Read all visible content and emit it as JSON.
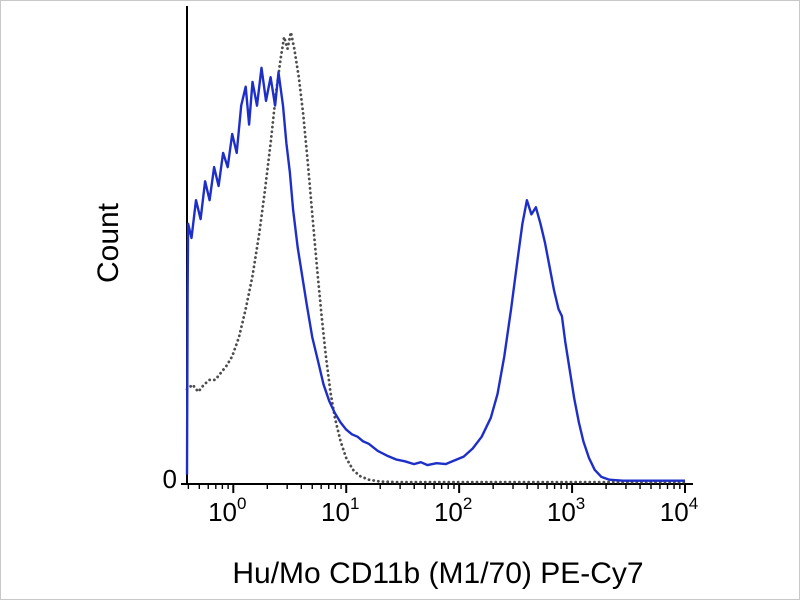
{
  "figure": {
    "background": "#ffffff",
    "border_color": "#c9c9c9"
  },
  "chart_data": {
    "type": "line",
    "subtype": "flow-cytometry-histogram",
    "title": "",
    "xlabel": "Hu/Mo CD11b (M1/70) PE-Cy7",
    "ylabel": "Count",
    "x_scale": "log10",
    "x_range_log": [
      -0.41,
      4
    ],
    "y_range": [
      0,
      1
    ],
    "grid": false,
    "legend": "none",
    "axis_color": "#000000",
    "y_tick_labels": [
      "0"
    ],
    "x_major_ticks": [
      {
        "base": "10",
        "exp": "0",
        "log": 0
      },
      {
        "base": "10",
        "exp": "1",
        "log": 1
      },
      {
        "base": "10",
        "exp": "2",
        "log": 2
      },
      {
        "base": "10",
        "exp": "3",
        "log": 3
      },
      {
        "base": "10",
        "exp": "4",
        "log": 4
      }
    ],
    "series": [
      {
        "name": "dotted-black-curve",
        "style": "dotted",
        "color": "#4d4d4d",
        "points": [
          [
            -0.41,
            0.2
          ],
          [
            -0.36,
            0.21
          ],
          [
            -0.31,
            0.195
          ],
          [
            -0.26,
            0.21
          ],
          [
            -0.21,
            0.22
          ],
          [
            -0.16,
            0.22
          ],
          [
            -0.11,
            0.235
          ],
          [
            -0.06,
            0.25
          ],
          [
            -0.01,
            0.27
          ],
          [
            0.05,
            0.31
          ],
          [
            0.11,
            0.37
          ],
          [
            0.17,
            0.44
          ],
          [
            0.23,
            0.53
          ],
          [
            0.28,
            0.62
          ],
          [
            0.33,
            0.72
          ],
          [
            0.38,
            0.83
          ],
          [
            0.42,
            0.9
          ],
          [
            0.45,
            0.945
          ],
          [
            0.48,
            0.92
          ],
          [
            0.51,
            0.955
          ],
          [
            0.54,
            0.92
          ],
          [
            0.58,
            0.86
          ],
          [
            0.62,
            0.78
          ],
          [
            0.66,
            0.68
          ],
          [
            0.7,
            0.57
          ],
          [
            0.74,
            0.46
          ],
          [
            0.78,
            0.36
          ],
          [
            0.82,
            0.27
          ],
          [
            0.86,
            0.195
          ],
          [
            0.9,
            0.14
          ],
          [
            0.95,
            0.09
          ],
          [
            1.0,
            0.055
          ],
          [
            1.06,
            0.03
          ],
          [
            1.12,
            0.017
          ],
          [
            1.2,
            0.009
          ],
          [
            1.3,
            0.005
          ],
          [
            1.45,
            0.004
          ],
          [
            1.7,
            0.004
          ],
          [
            2.0,
            0.004
          ],
          [
            2.4,
            0.004
          ],
          [
            2.8,
            0.004
          ],
          [
            3.2,
            0.004
          ],
          [
            3.6,
            0.004
          ],
          [
            4.0,
            0.004
          ]
        ]
      },
      {
        "name": "solid-blue-curve",
        "style": "solid",
        "color": "#1e2fc8",
        "points": [
          [
            -0.41,
            0.02
          ],
          [
            -0.405,
            0.4
          ],
          [
            -0.4,
            0.55
          ],
          [
            -0.37,
            0.52
          ],
          [
            -0.33,
            0.6
          ],
          [
            -0.29,
            0.56
          ],
          [
            -0.25,
            0.64
          ],
          [
            -0.21,
            0.6
          ],
          [
            -0.17,
            0.67
          ],
          [
            -0.13,
            0.63
          ],
          [
            -0.09,
            0.7
          ],
          [
            -0.05,
            0.67
          ],
          [
            -0.01,
            0.74
          ],
          [
            0.03,
            0.7
          ],
          [
            0.07,
            0.8
          ],
          [
            0.11,
            0.84
          ],
          [
            0.14,
            0.76
          ],
          [
            0.17,
            0.85
          ],
          [
            0.21,
            0.8
          ],
          [
            0.25,
            0.88
          ],
          [
            0.29,
            0.81
          ],
          [
            0.33,
            0.86
          ],
          [
            0.37,
            0.8
          ],
          [
            0.4,
            0.87
          ],
          [
            0.44,
            0.8
          ],
          [
            0.47,
            0.72
          ],
          [
            0.5,
            0.66
          ],
          [
            0.53,
            0.58
          ],
          [
            0.57,
            0.5
          ],
          [
            0.61,
            0.44
          ],
          [
            0.65,
            0.38
          ],
          [
            0.7,
            0.31
          ],
          [
            0.75,
            0.26
          ],
          [
            0.8,
            0.21
          ],
          [
            0.85,
            0.175
          ],
          [
            0.9,
            0.15
          ],
          [
            0.95,
            0.13
          ],
          [
            1.0,
            0.115
          ],
          [
            1.05,
            0.105
          ],
          [
            1.1,
            0.1
          ],
          [
            1.15,
            0.09
          ],
          [
            1.2,
            0.085
          ],
          [
            1.28,
            0.07
          ],
          [
            1.36,
            0.06
          ],
          [
            1.44,
            0.052
          ],
          [
            1.52,
            0.048
          ],
          [
            1.6,
            0.042
          ],
          [
            1.66,
            0.046
          ],
          [
            1.72,
            0.04
          ],
          [
            1.8,
            0.044
          ],
          [
            1.88,
            0.042
          ],
          [
            1.96,
            0.05
          ],
          [
            2.04,
            0.058
          ],
          [
            2.12,
            0.075
          ],
          [
            2.2,
            0.1
          ],
          [
            2.28,
            0.14
          ],
          [
            2.34,
            0.19
          ],
          [
            2.4,
            0.27
          ],
          [
            2.46,
            0.37
          ],
          [
            2.52,
            0.48
          ],
          [
            2.56,
            0.55
          ],
          [
            2.6,
            0.6
          ],
          [
            2.64,
            0.57
          ],
          [
            2.68,
            0.585
          ],
          [
            2.72,
            0.55
          ],
          [
            2.76,
            0.51
          ],
          [
            2.8,
            0.46
          ],
          [
            2.84,
            0.41
          ],
          [
            2.88,
            0.37
          ],
          [
            2.91,
            0.355
          ],
          [
            2.94,
            0.3
          ],
          [
            2.98,
            0.24
          ],
          [
            3.02,
            0.18
          ],
          [
            3.06,
            0.13
          ],
          [
            3.1,
            0.09
          ],
          [
            3.15,
            0.055
          ],
          [
            3.2,
            0.03
          ],
          [
            3.26,
            0.015
          ],
          [
            3.33,
            0.009
          ],
          [
            3.45,
            0.007
          ],
          [
            3.6,
            0.007
          ],
          [
            3.8,
            0.007
          ],
          [
            4.0,
            0.007
          ]
        ]
      }
    ],
    "plot_geometry": {
      "x0": 186,
      "x1": 684,
      "y0": 483,
      "y1": 10,
      "axis_right_overhang": 8,
      "axis_top": 5
    }
  }
}
